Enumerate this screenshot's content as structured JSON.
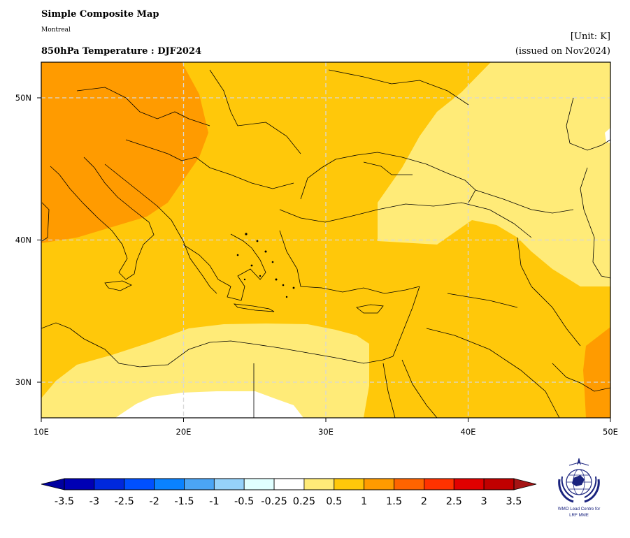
{
  "header": {
    "title": "Simple Composite Map",
    "subtitle": "Montreal",
    "product": "850hPa Temperature : DJF2024",
    "unit": "[Unit: K]",
    "issued": "(issued on Nov2024)"
  },
  "map": {
    "lon_range": [
      10,
      50
    ],
    "lat_range": [
      27.5,
      52.5
    ],
    "lon_ticks": [
      "10E",
      "20E",
      "30E",
      "40E",
      "50E"
    ],
    "lat_ticks": [
      "30N",
      "40N",
      "50N"
    ],
    "gridlines": true
  },
  "colorbar": {
    "labels": [
      "-3.5",
      "-3",
      "-2.5",
      "-2",
      "-1.5",
      "-1",
      "-0.5",
      "-0.25",
      "0.25",
      "0.5",
      "1",
      "1.5",
      "2",
      "2.5",
      "3",
      "3.5"
    ],
    "colors": [
      "#0000b4",
      "#0028dc",
      "#0050ff",
      "#0a82ff",
      "#4ba5f5",
      "#96d2fa",
      "#e1ffff",
      "#ffffff",
      "#ffeb78",
      "#ffc80a",
      "#ff9b00",
      "#ff6400",
      "#ff3200",
      "#e10000",
      "#c00000"
    ],
    "under_color": "#0000a0",
    "over_color": "#a51414"
  },
  "logo": {
    "text_line1": "WMO Lead Centre for",
    "text_line2": "LRF MME"
  }
}
